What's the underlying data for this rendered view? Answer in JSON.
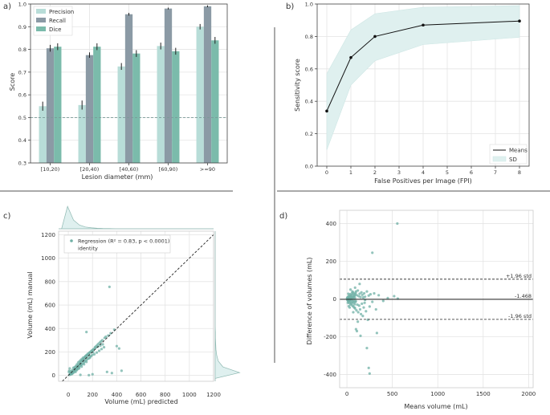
{
  "colors": {
    "precision": "#b8ddd8",
    "recall": "#8b9aa5",
    "dice": "#7bbbab",
    "band": "#dff0ef",
    "points": "#6fb0a5"
  },
  "panel_labels": {
    "a": "a)",
    "b": "b)",
    "c": "c)",
    "d": "d)"
  },
  "chart_data": [
    {
      "id": "a",
      "type": "bar",
      "categories": [
        "[10,20)",
        "[20,40)",
        "[40,60)",
        "[60,90)",
        ">=90"
      ],
      "series": [
        {
          "name": "Precision",
          "values": [
            0.55,
            0.555,
            0.725,
            0.815,
            0.9
          ],
          "errors": [
            0.02,
            0.02,
            0.015,
            0.015,
            0.012
          ]
        },
        {
          "name": "Recall",
          "values": [
            0.805,
            0.775,
            0.955,
            0.98,
            0.99
          ],
          "errors": [
            0.015,
            0.012,
            0.006,
            0.004,
            0.004
          ]
        },
        {
          "name": "Dice",
          "values": [
            0.812,
            0.812,
            0.782,
            0.792,
            0.84
          ],
          "errors": [
            0.015,
            0.015,
            0.015,
            0.015,
            0.015
          ]
        }
      ],
      "reference_line": 0.5,
      "title": "",
      "xlabel": "Lesion diameter (mm)",
      "ylabel": "Score",
      "ylim": [
        0.3,
        1.0
      ],
      "yticks": [
        "0.3",
        "0.4",
        "0.5",
        "0.6",
        "0.7",
        "0.8",
        "0.9",
        "1.0"
      ],
      "legend": "top-left"
    },
    {
      "id": "b",
      "type": "line",
      "x": [
        0,
        1,
        2,
        4,
        8
      ],
      "series": [
        {
          "name": "Means",
          "values": [
            0.34,
            0.67,
            0.8,
            0.87,
            0.895
          ]
        },
        {
          "name": "SD",
          "lower": [
            0.1,
            0.5,
            0.65,
            0.75,
            0.795
          ],
          "upper": [
            0.57,
            0.84,
            0.94,
            0.98,
            0.99
          ]
        }
      ],
      "xlabel": "False Positives per Image (FPI)",
      "ylabel": "Sensitivity score",
      "xlim": [
        -0.4,
        8.4
      ],
      "ylim": [
        0.0,
        1.0
      ],
      "xticks": [
        "0",
        "1",
        "2",
        "3",
        "4",
        "5",
        "6",
        "7",
        "8"
      ],
      "yticks": [
        "0.0",
        "0.2",
        "0.4",
        "0.6",
        "0.8",
        "1.0"
      ],
      "legend": "bottom-right"
    },
    {
      "id": "c",
      "type": "scatter",
      "xlabel": "Volume (mL) predicted",
      "ylabel": "Volume (mL) manual",
      "xlim": [
        -80,
        1200
      ],
      "ylim": [
        -50,
        1230
      ],
      "xticks": [
        "0",
        "200",
        "400",
        "600",
        "800",
        "1000",
        "1200"
      ],
      "yticks": [
        "0",
        "200",
        "400",
        "600",
        "800",
        "1000",
        "1200"
      ],
      "legend_entries": [
        "Regression (R² = 0.83, p < 0.0001)",
        "identity"
      ],
      "legend": "top-left",
      "points": [
        [
          10,
          5
        ],
        [
          15,
          12
        ],
        [
          20,
          18
        ],
        [
          25,
          22
        ],
        [
          30,
          28
        ],
        [
          35,
          30
        ],
        [
          40,
          38
        ],
        [
          45,
          42
        ],
        [
          50,
          55
        ],
        [
          55,
          48
        ],
        [
          60,
          62
        ],
        [
          65,
          58
        ],
        [
          70,
          75
        ],
        [
          75,
          68
        ],
        [
          80,
          85
        ],
        [
          85,
          90
        ],
        [
          90,
          80
        ],
        [
          95,
          100
        ],
        [
          100,
          110
        ],
        [
          105,
          95
        ],
        [
          110,
          120
        ],
        [
          115,
          130
        ],
        [
          120,
          125
        ],
        [
          125,
          140
        ],
        [
          130,
          135
        ],
        [
          135,
          150
        ],
        [
          140,
          160
        ],
        [
          145,
          155
        ],
        [
          150,
          170
        ],
        [
          155,
          165
        ],
        [
          160,
          175
        ],
        [
          170,
          180
        ],
        [
          175,
          195
        ],
        [
          180,
          160
        ],
        [
          190,
          205
        ],
        [
          200,
          215
        ],
        [
          205,
          200
        ],
        [
          210,
          225
        ],
        [
          220,
          240
        ],
        [
          230,
          250
        ],
        [
          240,
          260
        ],
        [
          250,
          270
        ],
        [
          260,
          280
        ],
        [
          270,
          290
        ],
        [
          280,
          300
        ],
        [
          300,
          320
        ],
        [
          310,
          330
        ],
        [
          330,
          340
        ],
        [
          350,
          360
        ],
        [
          380,
          390
        ],
        [
          400,
          250
        ],
        [
          150,
          370
        ],
        [
          340,
          755
        ],
        [
          420,
          230
        ],
        [
          440,
          40
        ],
        [
          320,
          30
        ],
        [
          360,
          20
        ],
        [
          100,
          5
        ],
        [
          170,
          2
        ],
        [
          200,
          10
        ],
        [
          5,
          30
        ],
        [
          8,
          40
        ],
        [
          12,
          60
        ],
        [
          18,
          20
        ],
        [
          22,
          35
        ],
        [
          28,
          15
        ],
        [
          33,
          45
        ],
        [
          38,
          25
        ],
        [
          42,
          65
        ],
        [
          48,
          30
        ],
        [
          52,
          70
        ],
        [
          58,
          40
        ],
        [
          62,
          80
        ],
        [
          68,
          50
        ],
        [
          72,
          95
        ],
        [
          78,
          60
        ],
        [
          82,
          110
        ],
        [
          88,
          70
        ],
        [
          92,
          120
        ],
        [
          98,
          85
        ],
        [
          102,
          130
        ],
        [
          108,
          90
        ],
        [
          112,
          140
        ],
        [
          118,
          100
        ],
        [
          122,
          150
        ],
        [
          128,
          110
        ],
        [
          132,
          155
        ],
        [
          138,
          120
        ],
        [
          142,
          165
        ],
        [
          148,
          130
        ],
        [
          152,
          175
        ],
        [
          158,
          140
        ],
        [
          162,
          185
        ],
        [
          168,
          145
        ],
        [
          172,
          190
        ],
        [
          178,
          150
        ],
        [
          182,
          200
        ],
        [
          188,
          165
        ],
        [
          192,
          210
        ],
        [
          198,
          175
        ],
        [
          205,
          220
        ],
        [
          215,
          180
        ],
        [
          225,
          235
        ],
        [
          235,
          195
        ],
        [
          245,
          245
        ],
        [
          255,
          210
        ],
        [
          265,
          255
        ],
        [
          275,
          225
        ],
        [
          285,
          265
        ],
        [
          295,
          240
        ],
        [
          20,
          8
        ],
        [
          30,
          12
        ],
        [
          40,
          20
        ],
        [
          60,
          30
        ],
        [
          70,
          45
        ],
        [
          80,
          55
        ],
        [
          90,
          60
        ],
        [
          110,
          75
        ],
        [
          130,
          95
        ],
        [
          150,
          115
        ]
      ],
      "marginal_x": [
        0,
        0.9,
        0.35,
        0.15,
        0.07,
        0.04,
        0.02,
        0.01,
        0.01,
        0,
        0,
        0,
        0,
        0,
        0,
        0,
        0,
        0,
        0,
        0,
        0,
        0,
        0,
        0,
        0,
        0
      ],
      "marginal_y": [
        0,
        0.95,
        0.3,
        0.12,
        0.06,
        0.03,
        0.02,
        0.01,
        0.01,
        0,
        0,
        0,
        0,
        0,
        0,
        0,
        0,
        0,
        0,
        0,
        0,
        0,
        0,
        0,
        0,
        0
      ]
    },
    {
      "id": "d",
      "type": "scatter",
      "subtype": "bland-altman",
      "xlabel": "Means volume (mL)",
      "ylabel": "Difference of volumes (mL)",
      "xlim": [
        -80,
        2050
      ],
      "ylim": [
        -470,
        470
      ],
      "xticks": [
        "0",
        "500",
        "1000",
        "1500",
        "2000"
      ],
      "yticks": [
        "-400",
        "-200",
        "0",
        "200",
        "400"
      ],
      "mean_line": {
        "value": -1.468,
        "label": "-1.468"
      },
      "upper_line": {
        "value": 105,
        "label": "+1.96 std"
      },
      "lower_line": {
        "value": -108,
        "label": "-1.96 std"
      },
      "points": [
        [
          2,
          5
        ],
        [
          4,
          -3
        ],
        [
          6,
          8
        ],
        [
          8,
          -6
        ],
        [
          10,
          2
        ],
        [
          12,
          -10
        ],
        [
          14,
          12
        ],
        [
          16,
          -4
        ],
        [
          18,
          6
        ],
        [
          20,
          -15
        ],
        [
          22,
          3
        ],
        [
          24,
          18
        ],
        [
          26,
          -8
        ],
        [
          28,
          -22
        ],
        [
          30,
          10
        ],
        [
          32,
          -5
        ],
        [
          34,
          25
        ],
        [
          36,
          -12
        ],
        [
          38,
          4
        ],
        [
          40,
          -30
        ],
        [
          42,
          15
        ],
        [
          44,
          -2
        ],
        [
          46,
          20
        ],
        [
          48,
          -18
        ],
        [
          50,
          8
        ],
        [
          52,
          -25
        ],
        [
          54,
          30
        ],
        [
          56,
          -6
        ],
        [
          58,
          12
        ],
        [
          60,
          -35
        ],
        [
          62,
          5
        ],
        [
          64,
          22
        ],
        [
          66,
          -14
        ],
        [
          68,
          35
        ],
        [
          70,
          -40
        ],
        [
          72,
          9
        ],
        [
          74,
          -20
        ],
        [
          76,
          28
        ],
        [
          78,
          -9
        ],
        [
          80,
          14
        ],
        [
          82,
          -45
        ],
        [
          84,
          18
        ],
        [
          86,
          -28
        ],
        [
          88,
          6
        ],
        [
          90,
          -50
        ],
        [
          92,
          25
        ],
        [
          94,
          -16
        ],
        [
          96,
          32
        ],
        [
          98,
          -11
        ],
        [
          100,
          40
        ],
        [
          105,
          -60
        ],
        [
          110,
          20
        ],
        [
          115,
          -30
        ],
        [
          120,
          45
        ],
        [
          125,
          -70
        ],
        [
          130,
          15
        ],
        [
          135,
          -35
        ],
        [
          140,
          28
        ],
        [
          145,
          -55
        ],
        [
          150,
          10
        ],
        [
          155,
          -80
        ],
        [
          160,
          35
        ],
        [
          165,
          -25
        ],
        [
          170,
          22
        ],
        [
          175,
          -90
        ],
        [
          180,
          8
        ],
        [
          185,
          -45
        ],
        [
          190,
          30
        ],
        [
          195,
          -20
        ],
        [
          200,
          12
        ],
        [
          210,
          -65
        ],
        [
          220,
          40
        ],
        [
          230,
          -110
        ],
        [
          240,
          18
        ],
        [
          250,
          -40
        ],
        [
          260,
          25
        ],
        [
          280,
          -15
        ],
        [
          300,
          30
        ],
        [
          320,
          -55
        ],
        [
          350,
          20
        ],
        [
          400,
          -10
        ],
        [
          450,
          5
        ],
        [
          520,
          15
        ],
        [
          560,
          2
        ],
        [
          100,
          -160
        ],
        [
          110,
          -170
        ],
        [
          150,
          -195
        ],
        [
          220,
          -260
        ],
        [
          240,
          -365
        ],
        [
          250,
          -395
        ],
        [
          330,
          -180
        ],
        [
          280,
          245
        ],
        [
          555,
          400
        ],
        [
          200,
          -5
        ],
        [
          60,
          40
        ],
        [
          70,
          -70
        ],
        [
          90,
          60
        ],
        [
          120,
          -120
        ],
        [
          140,
          80
        ],
        [
          40,
          50
        ],
        [
          30,
          -45
        ],
        [
          20,
          -38
        ],
        [
          15,
          28
        ],
        [
          10,
          -20
        ]
      ]
    }
  ]
}
